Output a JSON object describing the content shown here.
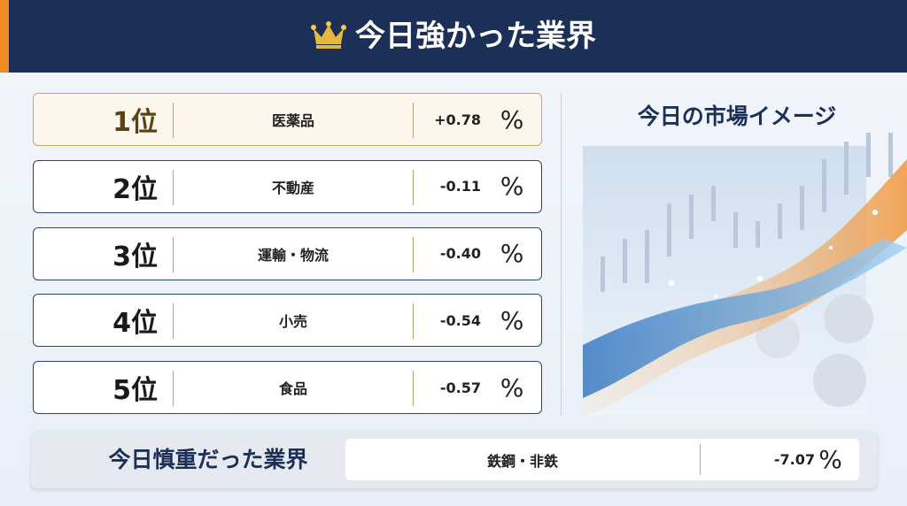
{
  "header": {
    "title": "今日強かった業界"
  },
  "ranking": {
    "rows": [
      {
        "rank": "1位",
        "industry": "医薬品",
        "change": "+0.78",
        "unit": "%"
      },
      {
        "rank": "2位",
        "industry": "不動産",
        "change": "-0.11",
        "unit": "%"
      },
      {
        "rank": "3位",
        "industry": "運輸・物流",
        "change": "-0.40",
        "unit": "%"
      },
      {
        "rank": "4位",
        "industry": "小売",
        "change": "-0.54",
        "unit": "%"
      },
      {
        "rank": "5位",
        "industry": "食品",
        "change": "-0.57",
        "unit": "%"
      }
    ]
  },
  "market_panel": {
    "title": "今日の市場イメージ"
  },
  "weakest": {
    "title": "今日慎重だった業界",
    "industry": "鉄鋼・非鉄",
    "change": "-7.07",
    "unit": "%"
  }
}
